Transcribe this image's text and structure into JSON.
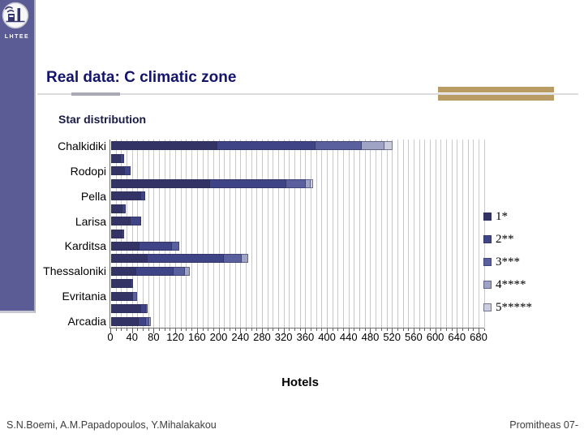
{
  "slide": {
    "logo_text": "LHTEE",
    "title": "Real data: C climatic zone",
    "footer": {
      "authors": "S.N.Boemi, A.M.Papadopoulos, Y.Mihalakakou",
      "project": "Promitheas 07-"
    },
    "colors": {
      "sidebar": "#5B5B95",
      "title_text": "#14146B",
      "accent_gold": "#B99C63"
    }
  },
  "chart_data": {
    "type": "bar",
    "orientation": "horizontal",
    "stacked": true,
    "title": "Star distribution",
    "xlabel": "Hotels",
    "xlim": [
      0,
      680
    ],
    "xtick_step": 40,
    "minor_grid_step": 10,
    "grid": true,
    "legend_position": "right",
    "series_names": [
      "1*",
      "2**",
      "3***",
      "4****",
      "5*****"
    ],
    "series_colors": [
      "#333366",
      "#3E4485",
      "#5A5F9E",
      "#9FA3C4",
      "#CBCDDC"
    ],
    "rows": [
      {
        "label": "Chalkidiki",
        "values": [
          196,
          182,
          85,
          42,
          15
        ]
      },
      {
        "label": "",
        "values": [
          18,
          6,
          0,
          0,
          0
        ]
      },
      {
        "label": "Rodopi",
        "values": [
          26,
          10,
          0,
          0,
          0
        ]
      },
      {
        "label": "",
        "values": [
          183,
          140,
          37,
          8,
          5
        ]
      },
      {
        "label": "Pella",
        "values": [
          55,
          8,
          0,
          0,
          0
        ]
      },
      {
        "label": "",
        "values": [
          21,
          6,
          0,
          0,
          0
        ]
      },
      {
        "label": "Larisa",
        "values": [
          36,
          20,
          0,
          0,
          0
        ]
      },
      {
        "label": "",
        "values": [
          21,
          3,
          0,
          0,
          0
        ]
      },
      {
        "label": "Karditsa",
        "values": [
          53,
          60,
          13,
          0,
          0
        ]
      },
      {
        "label": "",
        "values": [
          68,
          140,
          33,
          12,
          0
        ]
      },
      {
        "label": "Thessaloniki",
        "values": [
          46,
          70,
          20,
          10,
          0
        ]
      },
      {
        "label": "",
        "values": [
          38,
          3,
          0,
          0,
          0
        ]
      },
      {
        "label": "Evritania",
        "values": [
          41,
          0,
          7,
          0,
          0
        ]
      },
      {
        "label": "",
        "values": [
          56,
          8,
          4,
          0,
          0
        ]
      },
      {
        "label": "Arcadia",
        "values": [
          51,
          14,
          6,
          2,
          0
        ]
      }
    ]
  }
}
